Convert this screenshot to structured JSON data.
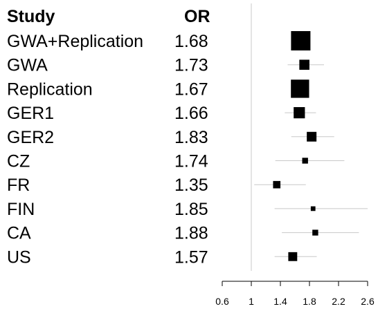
{
  "chart_data": {
    "type": "forest",
    "headers": {
      "study": "Study",
      "or": "OR"
    },
    "x_ticks": [
      "0.6",
      "1",
      "1.4",
      "1.8",
      "2.2",
      "2.6"
    ],
    "xlim": [
      0.6,
      2.6
    ],
    "reference_line": 1,
    "rows": [
      {
        "study": "GWA+Replication",
        "or_label": "1.68",
        "or": 1.68,
        "ci": [
          1.6,
          1.77
        ],
        "weight": 1.0
      },
      {
        "study": "GWA",
        "or_label": "1.73",
        "or": 1.73,
        "ci": [
          1.5,
          2.0
        ],
        "weight": 0.52
      },
      {
        "study": "Replication",
        "or_label": "1.67",
        "or": 1.67,
        "ci": [
          1.57,
          1.79
        ],
        "weight": 0.94
      },
      {
        "study": "GER1",
        "or_label": "1.66",
        "or": 1.66,
        "ci": [
          1.46,
          1.89
        ],
        "weight": 0.58
      },
      {
        "study": "GER2",
        "or_label": "1.83",
        "or": 1.83,
        "ci": [
          1.55,
          2.14
        ],
        "weight": 0.5
      },
      {
        "study": "CZ",
        "or_label": "1.74",
        "or": 1.74,
        "ci": [
          1.33,
          2.28
        ],
        "weight": 0.3
      },
      {
        "study": "FR",
        "or_label": "1.35",
        "or": 1.35,
        "ci": [
          1.04,
          1.75
        ],
        "weight": 0.38
      },
      {
        "study": "FIN",
        "or_label": "1.85",
        "or": 1.85,
        "ci": [
          1.32,
          2.6
        ],
        "weight": 0.24
      },
      {
        "study": "CA",
        "or_label": "1.88",
        "or": 1.88,
        "ci": [
          1.42,
          2.48
        ],
        "weight": 0.3
      },
      {
        "study": "US",
        "or_label": "1.57",
        "or": 1.57,
        "ci": [
          1.32,
          1.9
        ],
        "weight": 0.46
      }
    ]
  }
}
